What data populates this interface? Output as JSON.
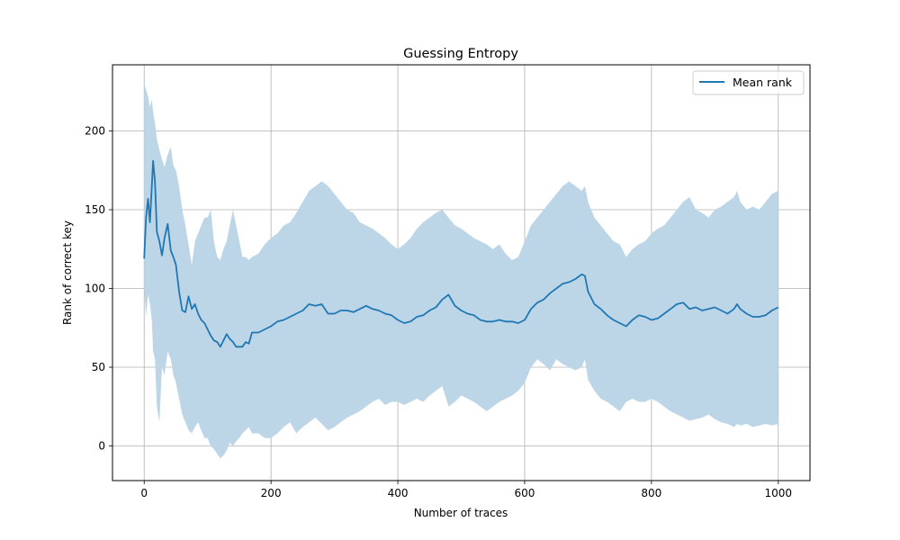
{
  "chart_data": {
    "type": "line",
    "title": "Guessing Entropy",
    "xlabel": "Number of traces",
    "ylabel": "Rank of correct key",
    "xlim": [
      -50,
      1050
    ],
    "ylim": [
      -22,
      242
    ],
    "xticks": [
      0,
      200,
      400,
      600,
      800,
      1000
    ],
    "yticks": [
      0,
      50,
      100,
      150,
      200
    ],
    "grid": true,
    "legend_position": "top-right",
    "colors": {
      "line": "#1f77b4",
      "band": "#bcd6e8",
      "grid": "#b0b0b0"
    },
    "series": [
      {
        "name": "Mean rank",
        "x": [
          0,
          3,
          6,
          9,
          12,
          14,
          17,
          20,
          24,
          28,
          32,
          37,
          42,
          46,
          50,
          55,
          60,
          65,
          70,
          75,
          80,
          85,
          90,
          95,
          100,
          105,
          110,
          115,
          120,
          125,
          130,
          135,
          140,
          145,
          150,
          155,
          160,
          165,
          170,
          180,
          190,
          200,
          210,
          220,
          230,
          240,
          250,
          260,
          270,
          280,
          290,
          300,
          310,
          320,
          330,
          340,
          350,
          360,
          370,
          380,
          390,
          400,
          410,
          420,
          430,
          440,
          450,
          460,
          470,
          480,
          490,
          500,
          510,
          520,
          530,
          540,
          550,
          560,
          570,
          580,
          590,
          600,
          610,
          620,
          630,
          640,
          650,
          660,
          670,
          680,
          690,
          695,
          700,
          710,
          720,
          730,
          740,
          750,
          760,
          770,
          780,
          790,
          800,
          810,
          820,
          830,
          840,
          850,
          860,
          870,
          880,
          890,
          900,
          910,
          920,
          930,
          935,
          940,
          950,
          960,
          970,
          980,
          990,
          1000
        ],
        "mean": [
          119,
          145,
          157,
          142,
          165,
          181,
          168,
          136,
          130,
          121,
          132,
          141,
          124,
          120,
          115,
          98,
          86,
          85,
          95,
          87,
          90,
          84,
          80,
          78,
          74,
          70,
          67,
          66,
          63,
          67,
          71,
          68,
          66,
          63,
          63,
          63,
          66,
          65,
          72,
          72,
          74,
          76,
          79,
          80,
          82,
          84,
          86,
          90,
          89,
          90,
          84,
          84,
          86,
          86,
          85,
          87,
          89,
          87,
          86,
          84,
          83,
          80,
          78,
          79,
          82,
          83,
          86,
          88,
          93,
          96,
          89,
          86,
          84,
          83,
          80,
          79,
          79,
          80,
          79,
          79,
          78,
          80,
          87,
          91,
          93,
          97,
          100,
          103,
          104,
          106,
          109,
          108,
          98,
          90,
          87,
          83,
          80,
          78,
          76,
          80,
          83,
          82,
          80,
          81,
          84,
          87,
          90,
          91,
          87,
          88,
          86,
          87,
          88,
          86,
          84,
          87,
          90,
          87,
          84,
          82,
          82,
          83,
          86,
          88
        ],
        "upper": [
          230,
          226,
          222,
          215,
          220,
          212,
          205,
          195,
          188,
          182,
          177,
          185,
          190,
          178,
          175,
          165,
          150,
          140,
          128,
          115,
          130,
          135,
          140,
          145,
          145,
          150,
          130,
          120,
          118,
          125,
          130,
          140,
          150,
          140,
          130,
          120,
          120,
          118,
          120,
          122,
          128,
          132,
          135,
          140,
          142,
          148,
          155,
          162,
          165,
          168,
          165,
          160,
          155,
          150,
          148,
          142,
          140,
          138,
          135,
          132,
          128,
          125,
          128,
          132,
          138,
          142,
          145,
          148,
          150,
          145,
          140,
          138,
          135,
          132,
          130,
          128,
          125,
          128,
          122,
          118,
          120,
          130,
          140,
          145,
          150,
          155,
          160,
          165,
          168,
          165,
          162,
          165,
          155,
          145,
          140,
          135,
          130,
          128,
          120,
          125,
          128,
          130,
          135,
          138,
          140,
          145,
          150,
          155,
          158,
          150,
          148,
          145,
          150,
          152,
          155,
          158,
          162,
          155,
          150,
          152,
          150,
          155,
          160,
          162
        ],
        "lower": [
          100,
          82,
          96,
          90,
          80,
          60,
          55,
          25,
          15,
          50,
          45,
          60,
          55,
          45,
          40,
          30,
          20,
          15,
          10,
          8,
          12,
          15,
          10,
          5,
          5,
          0,
          -2,
          -5,
          -8,
          -6,
          -3,
          2,
          0,
          3,
          5,
          8,
          10,
          12,
          8,
          8,
          5,
          5,
          8,
          12,
          15,
          8,
          12,
          15,
          18,
          14,
          10,
          12,
          15,
          18,
          20,
          22,
          25,
          28,
          30,
          26,
          28,
          28,
          26,
          28,
          30,
          28,
          32,
          35,
          38,
          25,
          28,
          32,
          30,
          28,
          25,
          22,
          25,
          28,
          30,
          32,
          35,
          40,
          50,
          55,
          52,
          48,
          55,
          52,
          50,
          48,
          50,
          55,
          42,
          35,
          30,
          28,
          25,
          22,
          28,
          30,
          28,
          28,
          30,
          28,
          25,
          22,
          20,
          18,
          16,
          17,
          18,
          20,
          17,
          15,
          14,
          12,
          14,
          13,
          14,
          12,
          13,
          14,
          13,
          14
        ]
      }
    ]
  }
}
